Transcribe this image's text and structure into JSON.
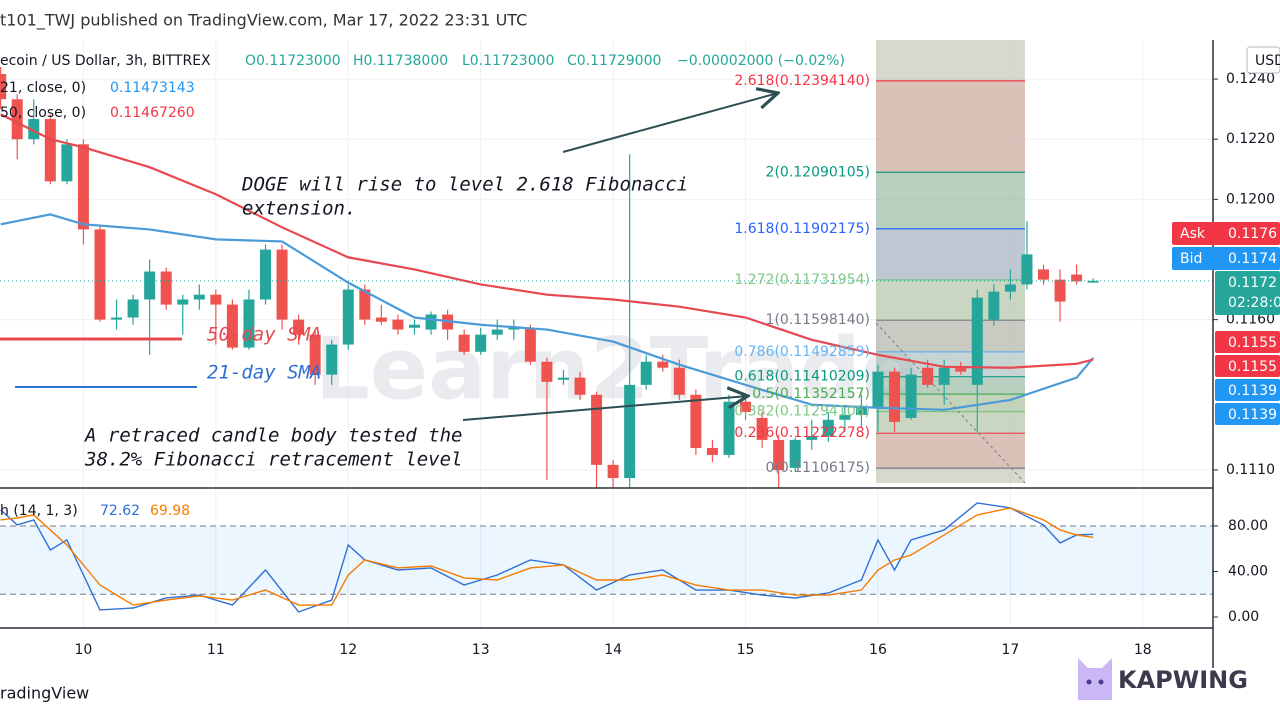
{
  "chart_data": [
    {
      "type": "candlestick",
      "title": "t101_TWJ published on TradingView.com, Mar 17, 2022 23:31 UTC",
      "subtitle": "ecoin / US Dollar, 3h, BITTREX",
      "ohlc_labels": [
        "O0.11723000",
        "H0.11738000",
        "L0.11723000",
        "C0.11729000",
        "−0.00002000 (−0.02%)"
      ],
      "xlim": [
        9.37,
        18.53
      ],
      "ylim": [
        0.1104,
        0.1253
      ],
      "yticks": [
        {
          "value": 0.124,
          "label": "0.1240"
        },
        {
          "value": 0.122,
          "label": "0.1220"
        },
        {
          "value": 0.12,
          "label": "0.1200"
        },
        {
          "value": 0.116,
          "label": "0.1160"
        },
        {
          "value": 0.111,
          "label": "0.1110"
        }
      ],
      "axis_unit": "USD",
      "grid": true,
      "up_color": "#26a69a",
      "down_color": "#ef5350",
      "candles": {
        "x": [
          9.375,
          9.5,
          9.625,
          9.75,
          9.875,
          10,
          10.125,
          10.25,
          10.375,
          10.5,
          10.625,
          10.75,
          10.875,
          11,
          11.125,
          11.25,
          11.375,
          11.5,
          11.625,
          11.75,
          11.875,
          12,
          12.125,
          12.25,
          12.375,
          12.5,
          12.625,
          12.75,
          12.875,
          13,
          13.125,
          13.25,
          13.375,
          13.5,
          13.625,
          13.75,
          13.875,
          14,
          14.125,
          14.25,
          14.375,
          14.5,
          14.625,
          14.75,
          14.875,
          15,
          15.125,
          15.25,
          15.375,
          15.5,
          15.625,
          15.75,
          15.875,
          16,
          16.125,
          16.25,
          16.375,
          16.5,
          16.625,
          16.75,
          16.875,
          17,
          17.125,
          17.25,
          17.375,
          17.5,
          17.625
        ],
        "open": [
          0.12417,
          0.12333,
          0.122,
          0.12267,
          0.1206,
          0.12183,
          0.119,
          0.116,
          0.11607,
          0.11667,
          0.1176,
          0.1165,
          0.11667,
          0.11683,
          0.1165,
          0.11507,
          0.11667,
          0.11833,
          0.116,
          0.1155,
          0.11417,
          0.11517,
          0.117,
          0.11607,
          0.116,
          0.11573,
          0.11567,
          0.11617,
          0.1155,
          0.11493,
          0.1155,
          0.11567,
          0.11573,
          0.1146,
          0.114,
          0.11407,
          0.1135,
          0.11117,
          0.11073,
          0.11383,
          0.1146,
          0.1144,
          0.1135,
          0.11173,
          0.1115,
          0.11327,
          0.11273,
          0.112,
          0.11107,
          0.112,
          0.11213,
          0.11267,
          0.11283,
          0.11307,
          0.11427,
          0.11273,
          0.1144,
          0.11383,
          0.1144,
          0.11383,
          0.116,
          0.11693,
          0.11717,
          0.11767,
          0.11733,
          0.1175,
          0.11723
        ],
        "high": [
          0.1244,
          0.1235,
          0.12333,
          0.12283,
          0.122,
          0.122,
          0.11917,
          0.11667,
          0.11683,
          0.118,
          0.11773,
          0.11683,
          0.11717,
          0.117,
          0.11667,
          0.117,
          0.1185,
          0.1185,
          0.11617,
          0.11567,
          0.11533,
          0.11717,
          0.11717,
          0.1165,
          0.11617,
          0.116,
          0.11627,
          0.11633,
          0.11567,
          0.11573,
          0.116,
          0.116,
          0.11583,
          0.11473,
          0.11433,
          0.11427,
          0.1136,
          0.11133,
          0.1215,
          0.11483,
          0.11483,
          0.11467,
          0.11367,
          0.112,
          0.1135,
          0.1135,
          0.11293,
          0.11217,
          0.11207,
          0.11267,
          0.11293,
          0.11317,
          0.1135,
          0.1145,
          0.1144,
          0.1144,
          0.11467,
          0.11467,
          0.1146,
          0.117,
          0.11717,
          0.11767,
          0.11927,
          0.11783,
          0.11767,
          0.11783,
          0.11738
        ],
        "low": [
          0.123,
          0.12133,
          0.12183,
          0.1205,
          0.1205,
          0.1185,
          0.11593,
          0.11567,
          0.11583,
          0.11483,
          0.11633,
          0.1155,
          0.11633,
          0.11517,
          0.115,
          0.115,
          0.1165,
          0.11567,
          0.11517,
          0.11383,
          0.11383,
          0.115,
          0.11583,
          0.11583,
          0.1155,
          0.1155,
          0.1155,
          0.11533,
          0.11483,
          0.11483,
          0.11533,
          0.11533,
          0.1145,
          0.11067,
          0.11383,
          0.11333,
          0.1104,
          0.1104,
          0.1104,
          0.11367,
          0.11427,
          0.11333,
          0.1115,
          0.11127,
          0.1114,
          0.11267,
          0.11173,
          0.1104,
          0.11093,
          0.11167,
          0.11193,
          0.11227,
          0.1124,
          0.11227,
          0.11227,
          0.11267,
          0.11373,
          0.11317,
          0.11417,
          0.11227,
          0.1158,
          0.11667,
          0.117,
          0.11717,
          0.11593,
          0.11717,
          0.11723
        ],
        "close": [
          0.12333,
          0.122,
          0.12267,
          0.1206,
          0.12183,
          0.119,
          0.116,
          0.11607,
          0.11667,
          0.1176,
          0.1165,
          0.11667,
          0.11683,
          0.1165,
          0.11507,
          0.11667,
          0.11833,
          0.116,
          0.1155,
          0.11417,
          0.11517,
          0.117,
          0.116,
          0.11593,
          0.11567,
          0.11583,
          0.11617,
          0.11567,
          0.11493,
          0.1155,
          0.11567,
          0.11573,
          0.1146,
          0.11393,
          0.11407,
          0.1135,
          0.11117,
          0.11073,
          0.11383,
          0.1146,
          0.1144,
          0.1135,
          0.11173,
          0.1115,
          0.11327,
          0.11293,
          0.112,
          0.111,
          0.112,
          0.11213,
          0.11267,
          0.11283,
          0.11307,
          0.11427,
          0.1126,
          0.11417,
          0.11383,
          0.1144,
          0.11427,
          0.11673,
          0.11693,
          0.11717,
          0.11817,
          0.11733,
          0.1166,
          0.11727,
          0.11729
        ]
      },
      "series": [
        {
          "name": "21, close, 0)",
          "legend_label": "0.11473143",
          "color": "#4a9bd8",
          "x": [
            9.375,
            9.75,
            10,
            10.5,
            11,
            11.5,
            12,
            12.5,
            13,
            13.5,
            14,
            14.5,
            15,
            15.5,
            16,
            16.5,
            17,
            17.5,
            17.625
          ],
          "values": [
            0.11917,
            0.1195,
            0.11917,
            0.119,
            0.11867,
            0.1186,
            0.11723,
            0.11607,
            0.11583,
            0.11567,
            0.11527,
            0.1145,
            0.11383,
            0.11317,
            0.11307,
            0.113,
            0.11333,
            0.11407,
            0.11473143
          ]
        },
        {
          "name": "50, close, 0)",
          "legend_label": "0.11467260",
          "color": "#e8484f",
          "x": [
            9.375,
            9.75,
            10,
            10.5,
            11,
            11.5,
            12,
            12.5,
            13,
            13.5,
            14,
            14.5,
            15,
            15.5,
            16,
            16.5,
            17,
            17.5,
            17.625
          ],
          "values": [
            0.12283,
            0.122,
            0.12173,
            0.12107,
            0.12017,
            0.11907,
            0.11807,
            0.11767,
            0.11717,
            0.11683,
            0.11667,
            0.11643,
            0.11607,
            0.11533,
            0.11483,
            0.11443,
            0.1144,
            0.11453,
            0.1146726
          ]
        }
      ],
      "fib_levels": [
        {
          "label": "0(0.11106175)",
          "value": 0.11106175,
          "color": "#787b86"
        },
        {
          "label": "0.236(0.11222278)",
          "value": 0.11222278,
          "color": "#f23645"
        },
        {
          "label": "0.382(0.11294106)",
          "value": 0.11294106,
          "color": "#81c784"
        },
        {
          "label": "0.5(0.11352157)",
          "value": 0.11352157,
          "color": "#4caf50"
        },
        {
          "label": "0.618(0.11410209)",
          "value": 0.11410209,
          "color": "#089981"
        },
        {
          "label": "0.786(0.11492859)",
          "value": 0.11492859,
          "color": "#64b5f6"
        },
        {
          "label": "1(0.11598140)",
          "value": 0.1159814,
          "color": "#787b86"
        },
        {
          "label": "1.272(0.11731954)",
          "value": 0.11731954,
          "color": "#81c784"
        },
        {
          "label": "1.618(0.11902175)",
          "value": 0.11902175,
          "color": "#2962ff"
        },
        {
          "label": "2(0.12090105)",
          "value": 0.12090105,
          "color": "#089981"
        },
        {
          "label": "2.618(0.12394140)",
          "value": 0.1239414,
          "color": "#f23645"
        }
      ],
      "price_tags": [
        {
          "name": "Ask",
          "value": 0.1176,
          "color": "#f23645"
        },
        {
          "name": "Bid",
          "value": 0.1174,
          "color": "#2196f3"
        },
        {
          "value": 0.1172,
          "timer": "02:28:0",
          "color": "#26a69a"
        },
        {
          "value": 0.1155,
          "color": "#f23645"
        },
        {
          "value": 0.1155,
          "color": "#f23645"
        },
        {
          "value": 0.1139,
          "color": "#2196f3"
        },
        {
          "value": 0.1139,
          "color": "#2196f3"
        }
      ],
      "annotations": [
        "DOGE will rise to level 2.618 Fibonacci",
        "extension.",
        "A retraced candle body tested the",
        "38.2% Fibonacci retracement level",
        "50-day SMA",
        "21-day SMA"
      ],
      "watermark": "Learn2Trade",
      "source": "radingView",
      "logo": "KAPWING"
    },
    {
      "type": "line",
      "title": "h (14, 1, 3)",
      "xlim": [
        9.37,
        18.53
      ],
      "xticks": [
        10,
        11,
        12,
        13,
        14,
        15,
        16,
        17,
        18
      ],
      "ylim": [
        -8.8,
        111.6
      ],
      "yticks": [
        {
          "value": 80,
          "label": "80.00"
        },
        {
          "value": 40,
          "label": "40.00"
        },
        {
          "value": 0,
          "label": "0.00"
        }
      ],
      "band": [
        20,
        80
      ],
      "x": [
        9.375,
        9.5,
        9.625,
        9.75,
        9.875,
        10.125,
        10.375,
        10.625,
        10.875,
        11.125,
        11.375,
        11.625,
        11.875,
        12,
        12.125,
        12.375,
        12.625,
        12.875,
        13.125,
        13.375,
        13.625,
        13.875,
        14.125,
        14.375,
        14.625,
        14.875,
        15.125,
        15.375,
        15.625,
        15.875,
        16,
        16.125,
        16.25,
        16.5,
        16.75,
        17,
        17.25,
        17.375,
        17.5,
        17.625
      ],
      "series": [
        {
          "color": "#2f6fd6",
          "values": [
            94.1,
            80.9,
            85.3,
            58.9,
            67.7,
            6.2,
            7.9,
            16.7,
            19.3,
            10.5,
            41.3,
            4.4,
            14.9,
            63.3,
            50.1,
            41.3,
            43.1,
            28.1,
            36.9,
            50.1,
            45.7,
            23.7,
            36.9,
            41.3,
            23.7,
            23.7,
            19.3,
            16.7,
            21.1,
            32.5,
            67.7,
            41.3,
            67.7,
            76.5,
            100.2,
            95.8,
            80.9,
            65.1,
            72.1,
            72.62
          ]
        },
        {
          "color": "#f57c00",
          "values": [
            85.3,
            87,
            89.7,
            76.5,
            63.3,
            28.1,
            10.5,
            14.9,
            18.5,
            14.9,
            23.7,
            10.5,
            10.5,
            36.9,
            50.1,
            43.1,
            44.8,
            34.3,
            32.5,
            43.1,
            45.7,
            32.5,
            32.5,
            36.9,
            28.1,
            23.7,
            23.7,
            19.3,
            19.3,
            23.7,
            41.3,
            50.1,
            54.5,
            72.1,
            89.7,
            95.8,
            85.3,
            76.5,
            72.1,
            69.98
          ]
        }
      ]
    }
  ]
}
